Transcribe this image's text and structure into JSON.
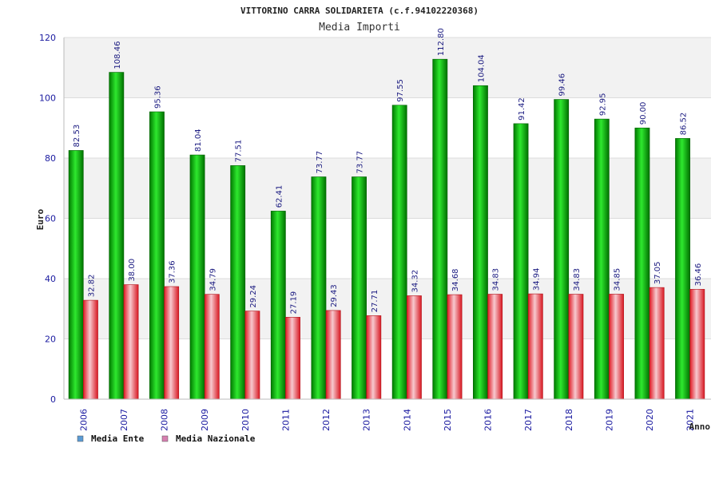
{
  "chart_data": {
    "type": "bar",
    "title": "VITTORINO CARRA SOLIDARIETA (c.f.94102220368)",
    "subtitle": "Media Importi",
    "ylabel": "Euro",
    "xlabel": "Anno",
    "ylim": [
      0,
      120
    ],
    "yticks": [
      0,
      20,
      40,
      60,
      80,
      100,
      120
    ],
    "grid": true,
    "legend_position": "bottom-left",
    "categories": [
      "2006",
      "2007",
      "2008",
      "2009",
      "2010",
      "2011",
      "2012",
      "2013",
      "2014",
      "2015",
      "2016",
      "2017",
      "2018",
      "2019",
      "2020",
      "2021"
    ],
    "series": [
      {
        "name": "Media Ente",
        "color": "#00b000",
        "legend_color": "#5b9bd5",
        "values": [
          82.53,
          108.46,
          95.36,
          81.04,
          77.51,
          62.41,
          73.77,
          73.77,
          97.55,
          112.8,
          104.04,
          91.42,
          99.46,
          92.95,
          90.0,
          86.52
        ],
        "labels": [
          "82.53",
          "108.46",
          "95.36",
          "81.04",
          "77.51",
          "62.41",
          "73.77",
          "73.77",
          "97.55",
          "112.80",
          "104.04",
          "91.42",
          "99.46",
          "92.95",
          "90.00",
          "86.52"
        ]
      },
      {
        "name": "Media Nazionale",
        "color": "#e8202a",
        "legend_color": "#d67fb0",
        "values": [
          32.82,
          38.0,
          37.36,
          34.79,
          29.24,
          27.19,
          29.43,
          27.71,
          34.32,
          34.68,
          34.83,
          34.94,
          34.83,
          34.85,
          37.05,
          36.46
        ],
        "labels": [
          "32.82",
          "38.00",
          "37.36",
          "34.79",
          "29.24",
          "27.19",
          "29.43",
          "27.71",
          "34.32",
          "34.68",
          "34.83",
          "34.94",
          "34.83",
          "34.85",
          "37.05",
          "36.46"
        ]
      }
    ]
  }
}
